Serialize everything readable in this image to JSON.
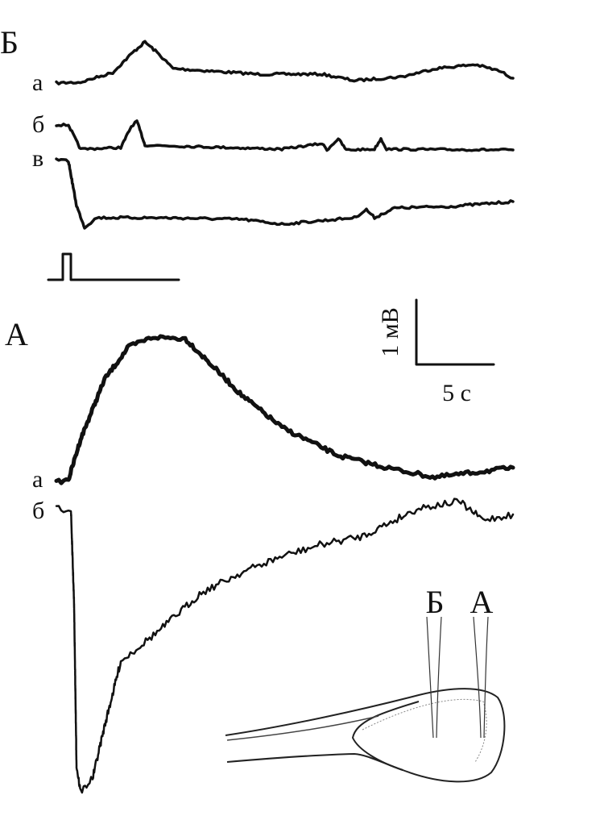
{
  "panels": [
    {
      "label": "Б",
      "traces": [
        "а",
        "б",
        "в"
      ]
    },
    {
      "label": "А",
      "traces": [
        "а",
        "б"
      ]
    }
  ],
  "scale_bar": {
    "voltage": "1 мВ",
    "time": "5 с"
  },
  "inset": {
    "electrodes": [
      "Б",
      "А"
    ]
  }
}
